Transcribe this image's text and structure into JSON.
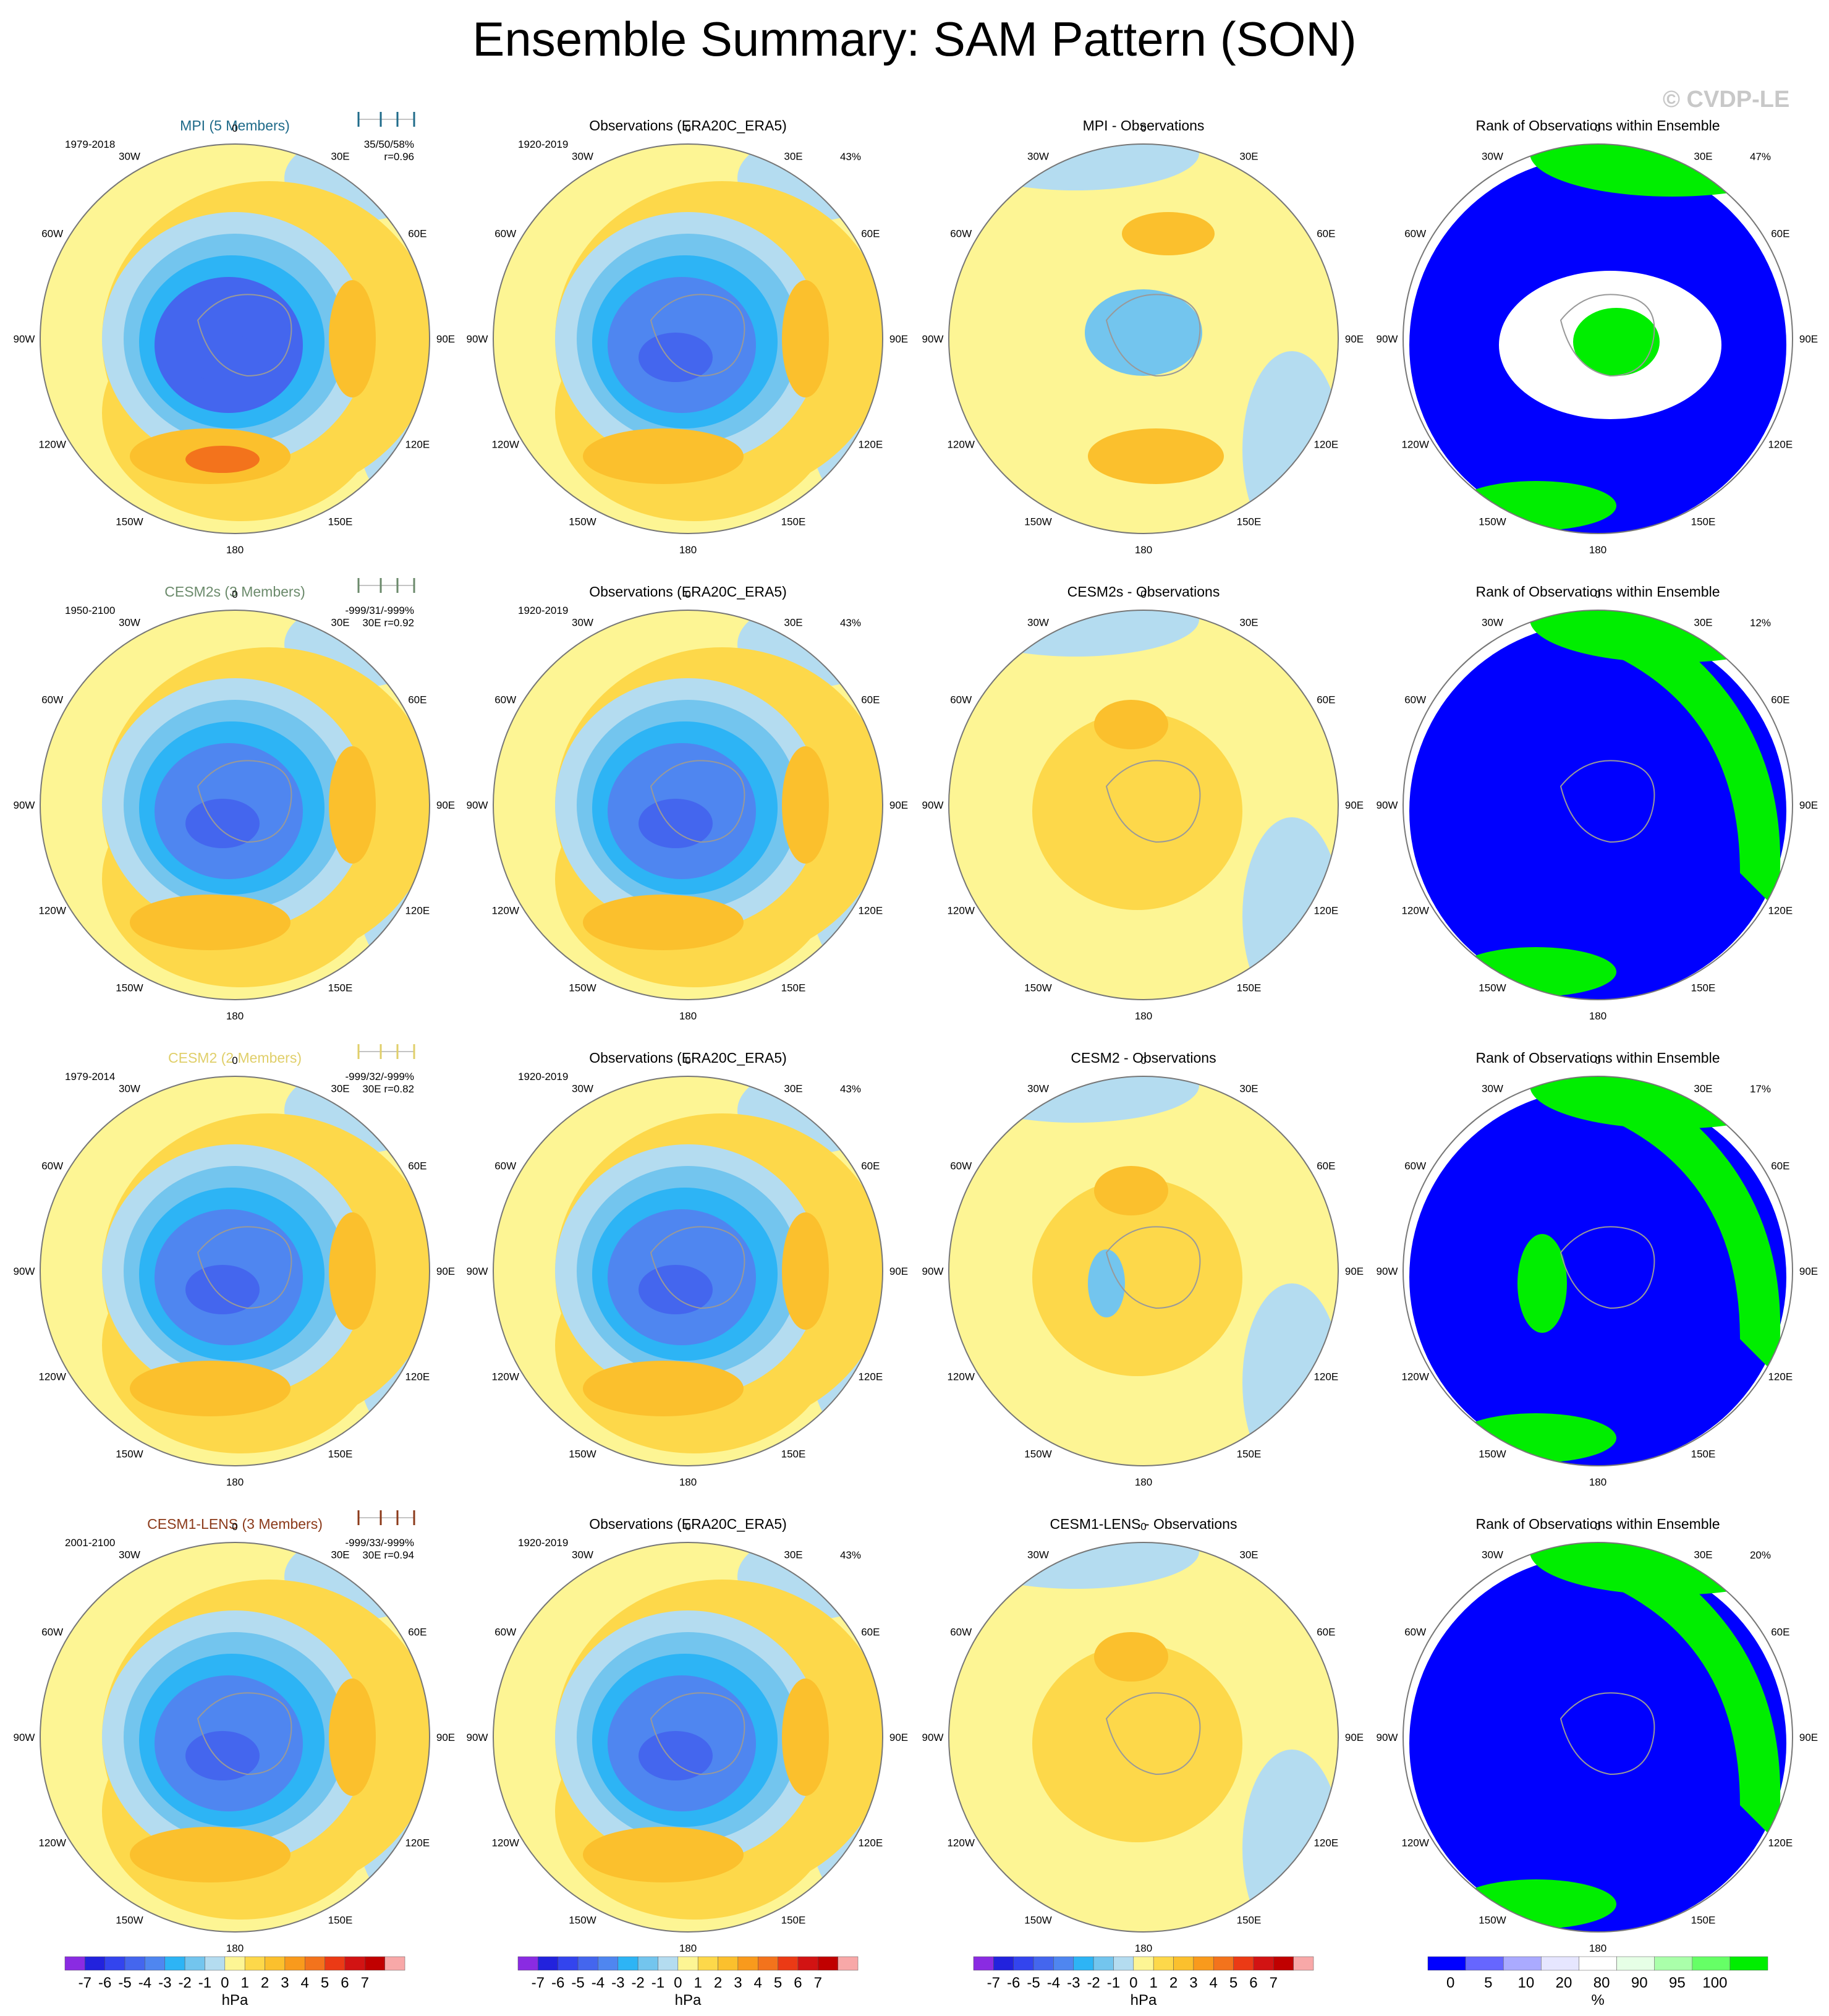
{
  "title": "Ensemble Summary: SAM Pattern (SON)",
  "watermark": "© CVDP-LE",
  "colors": {
    "fill_default": "#fdf594",
    "map_outline": "#999999",
    "rank_fill": "#0000ff",
    "rank_green": "#00ee00",
    "rank_light": "#e6ffe6"
  },
  "lon_labels": [
    "0",
    "30E",
    "60E",
    "90E",
    "120E",
    "150E",
    "180",
    "150W",
    "120W",
    "90W",
    "60W",
    "30W"
  ],
  "chart_data": [
    {
      "type": "heatmap",
      "rows": [
        {
          "model": "MPI (5 Members)",
          "model_color": "#1f6b8a",
          "period": "1979-2018",
          "stats": "35/50/58%",
          "corr": "r=0.96",
          "corr_prefix": "",
          "diff_title": "MPI - Observations",
          "rank_pct": "47%"
        },
        {
          "model": "CESM2s (3 Members)",
          "model_color": "#6b8a6b",
          "period": "1950-2100",
          "stats": "-999/31/-999%",
          "corr": "r=0.92",
          "corr_prefix": "30E",
          "diff_title": "CESM2s - Observations",
          "rank_pct": "12%"
        },
        {
          "model": "CESM2 (2 Members)",
          "model_color": "#e0cf6a",
          "period": "1979-2014",
          "stats": "-999/32/-999%",
          "corr": "r=0.82",
          "corr_prefix": "30E",
          "diff_title": "CESM2 - Observations",
          "rank_pct": "17%"
        },
        {
          "model": "CESM1-LENS (3 Members)",
          "model_color": "#8b3a1a",
          "period": "2001-2100",
          "stats": "-999/33/-999%",
          "corr": "r=0.94",
          "corr_prefix": "30E",
          "diff_title": "CESM1-LENS - Observations",
          "rank_pct": "20%"
        }
      ],
      "obs_title": "Observations (ERA20C_ERA5)",
      "obs_period": "1920-2019",
      "obs_pct": "43%",
      "rank_title": "Rank of Observations within Ensemble"
    }
  ],
  "colorbar_hpa": {
    "labels": [
      "-7",
      "-6",
      "-5",
      "-4",
      "-3",
      "-2",
      "-1",
      "0",
      "1",
      "2",
      "3",
      "4",
      "5",
      "6",
      "7"
    ],
    "colors": [
      "#8a2be2",
      "#2222dd",
      "#3344ee",
      "#4466ee",
      "#4f86f0",
      "#2db4f5",
      "#73c5ee",
      "#b4dcf0",
      "#fdf594",
      "#fdd84a",
      "#fbc02d",
      "#f99a1c",
      "#f3731c",
      "#eb3a15",
      "#d21313",
      "#c00000",
      "#f8a8a8"
    ],
    "unit": "hPa"
  },
  "colorbar_pct": {
    "labels": [
      "0",
      "5",
      "10",
      "20",
      "80",
      "90",
      "95",
      "100"
    ],
    "colors": [
      "#0000ff",
      "#6666ff",
      "#aaaaff",
      "#e6e6ff",
      "#ffffff",
      "#e6ffe6",
      "#aaffaa",
      "#66ff66",
      "#00ee00"
    ],
    "unit": "%"
  }
}
